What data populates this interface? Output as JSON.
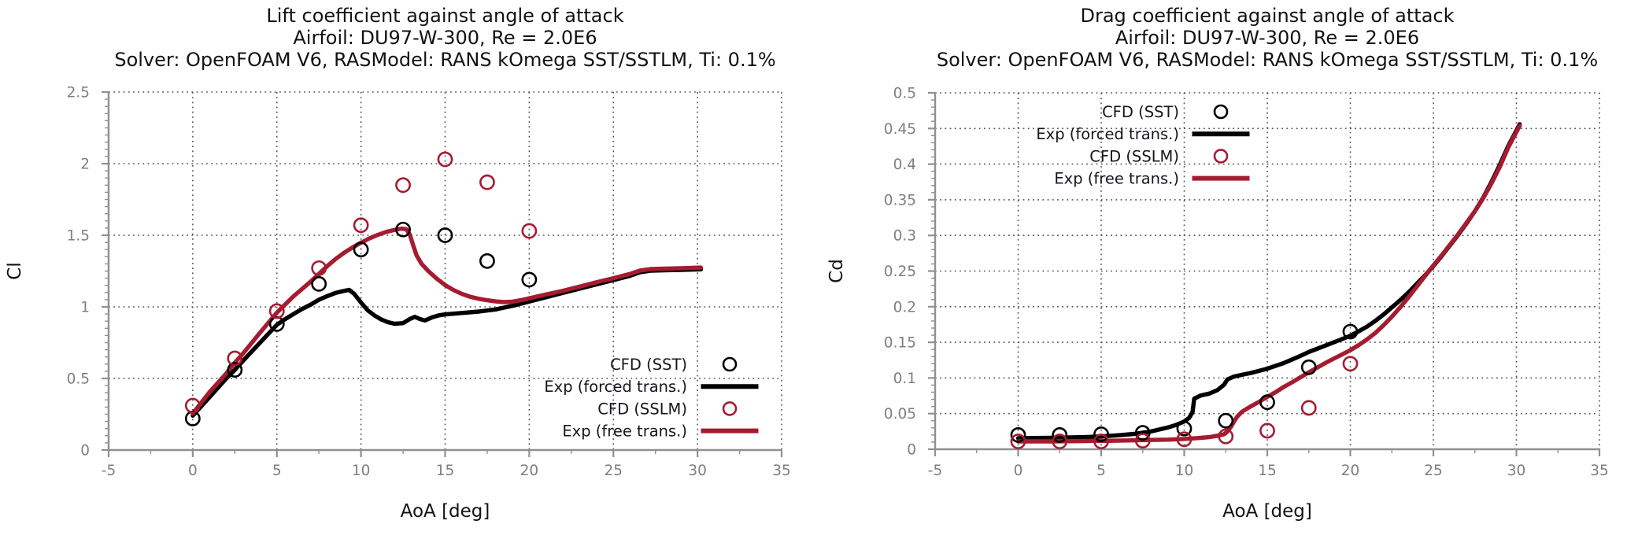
{
  "figure": {
    "background": "#ffffff",
    "colors": {
      "black": "#000000",
      "crimson": "#a51c30",
      "tick_label": "#7f7f7f",
      "spine": "#909090",
      "grid": "#555555",
      "text": "#121212",
      "legend_text": "#15151e"
    }
  },
  "chart_data": [
    {
      "type": "line+scatter",
      "title": "Lift coefficient against angle of attack",
      "subtitle1": "Airfoil: DU97-W-300, Re = 2.0E6",
      "subtitle2": "Solver: OpenFOAM V6, RASModel: RANS kOmega SST/SSTLM, Ti: 0.1%",
      "xlabel": "AoA [deg]",
      "ylabel": "Cl",
      "axes": {
        "xlim": [
          -5,
          35
        ],
        "ylim": [
          0,
          2.5
        ],
        "xticks": [
          -5,
          0,
          5,
          10,
          15,
          20,
          25,
          30,
          35
        ],
        "xticklabels": [
          "-5",
          "0",
          "5",
          "10",
          "15",
          "20",
          "25",
          "30",
          "35"
        ],
        "yticks": [
          0,
          0.5,
          1,
          1.5,
          2,
          2.5
        ],
        "yticklabels": [
          "0",
          "0.5",
          "1",
          "1.5",
          "2",
          "2.5"
        ],
        "xminor": 2.5,
        "yminor": 0.05,
        "grid": "dotted"
      },
      "legend": {
        "position": "lower right",
        "entries": [
          {
            "label": "CFD (SST)",
            "marker": "circle",
            "color": "#000000"
          },
          {
            "label": "Exp (forced trans.)",
            "marker": "line",
            "color": "#000000"
          },
          {
            "label": "CFD (SSLM)",
            "marker": "circle",
            "color": "#a51c30"
          },
          {
            "label": "Exp (free trans.)",
            "marker": "line",
            "color": "#a51c30"
          }
        ]
      },
      "series": [
        {
          "name": "Exp (forced trans.)",
          "style": "line",
          "color": "#000000",
          "points": [
            [
              0,
              0.24
            ],
            [
              1,
              0.37
            ],
            [
              2,
              0.5
            ],
            [
              2.5,
              0.56
            ],
            [
              3,
              0.625
            ],
            [
              4,
              0.75
            ],
            [
              5,
              0.875
            ],
            [
              5.5,
              0.915
            ],
            [
              6,
              0.95
            ],
            [
              6.5,
              0.985
            ],
            [
              7,
              1.015
            ],
            [
              7.5,
              1.05
            ],
            [
              8,
              1.075
            ],
            [
              8.5,
              1.098
            ],
            [
              9,
              1.112
            ],
            [
              9.3,
              1.118
            ],
            [
              9.6,
              1.09
            ],
            [
              10,
              1.03
            ],
            [
              10.4,
              0.975
            ],
            [
              10.8,
              0.94
            ],
            [
              11.2,
              0.912
            ],
            [
              11.6,
              0.893
            ],
            [
              12,
              0.882
            ],
            [
              12.5,
              0.886
            ],
            [
              12.9,
              0.915
            ],
            [
              13.2,
              0.93
            ],
            [
              13.5,
              0.915
            ],
            [
              13.8,
              0.905
            ],
            [
              14.2,
              0.925
            ],
            [
              14.6,
              0.94
            ],
            [
              15,
              0.947
            ],
            [
              16,
              0.957
            ],
            [
              17,
              0.967
            ],
            [
              18,
              0.982
            ],
            [
              19,
              1.007
            ],
            [
              20,
              1.037
            ],
            [
              21,
              1.067
            ],
            [
              22,
              1.097
            ],
            [
              23,
              1.127
            ],
            [
              24,
              1.157
            ],
            [
              25,
              1.187
            ],
            [
              26,
              1.217
            ],
            [
              26.6,
              1.242
            ],
            [
              27.2,
              1.252
            ],
            [
              28,
              1.255
            ],
            [
              29,
              1.258
            ],
            [
              30.2,
              1.262
            ]
          ]
        },
        {
          "name": "Exp (free trans.)",
          "style": "line",
          "color": "#a51c30",
          "points": [
            [
              0,
              0.255
            ],
            [
              1,
              0.405
            ],
            [
              2,
              0.535
            ],
            [
              2.5,
              0.61
            ],
            [
              3,
              0.675
            ],
            [
              4,
              0.82
            ],
            [
              5,
              0.96
            ],
            [
              6,
              1.075
            ],
            [
              7,
              1.175
            ],
            [
              7.5,
              1.23
            ],
            [
              8,
              1.285
            ],
            [
              8.5,
              1.335
            ],
            [
              9,
              1.378
            ],
            [
              9.5,
              1.415
            ],
            [
              10,
              1.448
            ],
            [
              10.5,
              1.478
            ],
            [
              11,
              1.503
            ],
            [
              11.5,
              1.523
            ],
            [
              12,
              1.538
            ],
            [
              12.4,
              1.546
            ],
            [
              12.7,
              1.542
            ],
            [
              12.9,
              1.505
            ],
            [
              13.1,
              1.43
            ],
            [
              13.3,
              1.36
            ],
            [
              13.6,
              1.3
            ],
            [
              14,
              1.25
            ],
            [
              14.5,
              1.197
            ],
            [
              15,
              1.152
            ],
            [
              15.5,
              1.117
            ],
            [
              16,
              1.09
            ],
            [
              16.5,
              1.07
            ],
            [
              17,
              1.056
            ],
            [
              17.5,
              1.046
            ],
            [
              18,
              1.038
            ],
            [
              18.5,
              1.033
            ],
            [
              19,
              1.036
            ],
            [
              19.5,
              1.046
            ],
            [
              20,
              1.06
            ],
            [
              21,
              1.087
            ],
            [
              22,
              1.112
            ],
            [
              23,
              1.142
            ],
            [
              24,
              1.172
            ],
            [
              25,
              1.2
            ],
            [
              26,
              1.23
            ],
            [
              26.6,
              1.254
            ],
            [
              27.2,
              1.264
            ],
            [
              28,
              1.267
            ],
            [
              29,
              1.27
            ],
            [
              30.2,
              1.274
            ]
          ]
        },
        {
          "name": "CFD (SST)",
          "style": "scatter",
          "color": "#000000",
          "x": [
            0,
            2.5,
            5,
            7.5,
            10,
            12.5,
            15,
            17.5,
            20
          ],
          "y": [
            0.22,
            0.56,
            0.88,
            1.16,
            1.4,
            1.54,
            1.5,
            1.32,
            1.19
          ]
        },
        {
          "name": "CFD (SSLM)",
          "style": "scatter",
          "color": "#a51c30",
          "x": [
            0,
            2.5,
            5,
            7.5,
            10,
            12.5,
            15,
            17.5,
            20
          ],
          "y": [
            0.31,
            0.64,
            0.97,
            1.27,
            1.57,
            1.85,
            2.03,
            1.87,
            1.53
          ]
        }
      ]
    },
    {
      "type": "line+scatter",
      "title": "Drag coefficient against angle of attack",
      "subtitle1": "Airfoil: DU97-W-300, Re = 2.0E6",
      "subtitle2": "Solver: OpenFOAM V6, RASModel: RANS kOmega SST/SSTLM, Ti: 0.1%",
      "xlabel": "AoA [deg]",
      "ylabel": "Cd",
      "axes": {
        "xlim": [
          -5,
          35
        ],
        "ylim": [
          0,
          0.5
        ],
        "xticks": [
          -5,
          0,
          5,
          10,
          15,
          20,
          25,
          30,
          35
        ],
        "xticklabels": [
          "-5",
          "0",
          "5",
          "10",
          "15",
          "20",
          "25",
          "30",
          "35"
        ],
        "yticks": [
          0,
          0.05,
          0.1,
          0.15,
          0.2,
          0.25,
          0.3,
          0.35,
          0.4,
          0.45,
          0.5
        ],
        "yticklabels": [
          "0",
          "0.05",
          "0.1",
          "0.15",
          "0.2",
          "0.25",
          "0.3",
          "0.35",
          "0.4",
          "0.45",
          "0.5"
        ],
        "xminor": 2.5,
        "yminor": 0.01,
        "grid": "dotted"
      },
      "legend": {
        "position": "upper center",
        "entries": [
          {
            "label": "CFD (SST)",
            "marker": "circle",
            "color": "#000000"
          },
          {
            "label": "Exp (forced trans.)",
            "marker": "line",
            "color": "#000000"
          },
          {
            "label": "CFD (SSLM)",
            "marker": "circle",
            "color": "#a51c30"
          },
          {
            "label": "Exp (free trans.)",
            "marker": "line",
            "color": "#a51c30"
          }
        ]
      },
      "series": [
        {
          "name": "Exp (forced trans.)",
          "style": "line",
          "color": "#000000",
          "points": [
            [
              0,
              0.0155
            ],
            [
              2,
              0.016
            ],
            [
              4,
              0.017
            ],
            [
              5,
              0.018
            ],
            [
              6,
              0.0195
            ],
            [
              7,
              0.0215
            ],
            [
              8,
              0.025
            ],
            [
              9,
              0.0305
            ],
            [
              9.5,
              0.034
            ],
            [
              10,
              0.039
            ],
            [
              10.3,
              0.044
            ],
            [
              10.5,
              0.052
            ],
            [
              10.6,
              0.071
            ],
            [
              11,
              0.0755
            ],
            [
              11.5,
              0.078
            ],
            [
              12,
              0.083
            ],
            [
              12.4,
              0.0905
            ],
            [
              12.6,
              0.098
            ],
            [
              13,
              0.102
            ],
            [
              13.5,
              0.1045
            ],
            [
              14,
              0.107
            ],
            [
              15,
              0.113
            ],
            [
              16,
              0.121
            ],
            [
              17,
              0.131
            ],
            [
              17.5,
              0.1365
            ],
            [
              18,
              0.141
            ],
            [
              19,
              0.15
            ],
            [
              20,
              0.159
            ],
            [
              20.5,
              0.1655
            ],
            [
              21,
              0.172
            ],
            [
              21.5,
              0.18
            ],
            [
              22,
              0.189
            ],
            [
              22.5,
              0.199
            ],
            [
              23,
              0.209
            ],
            [
              23.5,
              0.22
            ],
            [
              24,
              0.232
            ],
            [
              24.5,
              0.244
            ],
            [
              25,
              0.257
            ],
            [
              25.5,
              0.271
            ],
            [
              26,
              0.286
            ],
            [
              26.5,
              0.301
            ],
            [
              27,
              0.317
            ],
            [
              27.5,
              0.334
            ],
            [
              28,
              0.353
            ],
            [
              28.5,
              0.375
            ],
            [
              29,
              0.399
            ],
            [
              29.5,
              0.425
            ],
            [
              30.2,
              0.456
            ]
          ]
        },
        {
          "name": "Exp (free trans.)",
          "style": "line",
          "color": "#a51c30",
          "points": [
            [
              0,
              0.011
            ],
            [
              2,
              0.011
            ],
            [
              4,
              0.0115
            ],
            [
              6,
              0.012
            ],
            [
              8,
              0.013
            ],
            [
              9,
              0.0135
            ],
            [
              10,
              0.0145
            ],
            [
              11,
              0.016
            ],
            [
              11.5,
              0.017
            ],
            [
              12,
              0.019
            ],
            [
              12.4,
              0.021
            ],
            [
              12.6,
              0.025
            ],
            [
              12.8,
              0.031
            ],
            [
              13,
              0.039
            ],
            [
              13.2,
              0.046
            ],
            [
              13.5,
              0.053
            ],
            [
              14,
              0.06
            ],
            [
              14.5,
              0.0665
            ],
            [
              15,
              0.0735
            ],
            [
              15.5,
              0.08
            ],
            [
              16,
              0.0875
            ],
            [
              16.5,
              0.094
            ],
            [
              17,
              0.101
            ],
            [
              17.5,
              0.108
            ],
            [
              18,
              0.1145
            ],
            [
              18.5,
              0.121
            ],
            [
              19,
              0.127
            ],
            [
              19.5,
              0.133
            ],
            [
              20,
              0.139
            ],
            [
              20.5,
              0.146
            ],
            [
              21,
              0.154
            ],
            [
              21.5,
              0.163
            ],
            [
              22,
              0.174
            ],
            [
              22.5,
              0.186
            ],
            [
              23,
              0.199
            ],
            [
              23.5,
              0.213
            ],
            [
              24,
              0.228
            ],
            [
              24.5,
              0.243
            ],
            [
              25,
              0.258
            ],
            [
              25.5,
              0.272
            ],
            [
              26,
              0.287
            ],
            [
              26.5,
              0.302
            ],
            [
              27,
              0.318
            ],
            [
              27.5,
              0.334
            ],
            [
              28,
              0.352
            ],
            [
              28.5,
              0.373
            ],
            [
              29,
              0.396
            ],
            [
              29.5,
              0.423
            ],
            [
              30.2,
              0.454
            ]
          ]
        },
        {
          "name": "CFD (SST)",
          "style": "scatter",
          "color": "#000000",
          "x": [
            0,
            2.5,
            5,
            7.5,
            10,
            12.5,
            15,
            17.5,
            20
          ],
          "y": [
            0.02,
            0.02,
            0.021,
            0.023,
            0.029,
            0.04,
            0.066,
            0.115,
            0.165
          ]
        },
        {
          "name": "CFD (SSLM)",
          "style": "scatter",
          "color": "#a51c30",
          "x": [
            0,
            2.5,
            5,
            7.5,
            10,
            12.5,
            15,
            17.5,
            20
          ],
          "y": [
            0.011,
            0.011,
            0.011,
            0.012,
            0.014,
            0.018,
            0.026,
            0.058,
            0.12
          ]
        }
      ]
    }
  ]
}
